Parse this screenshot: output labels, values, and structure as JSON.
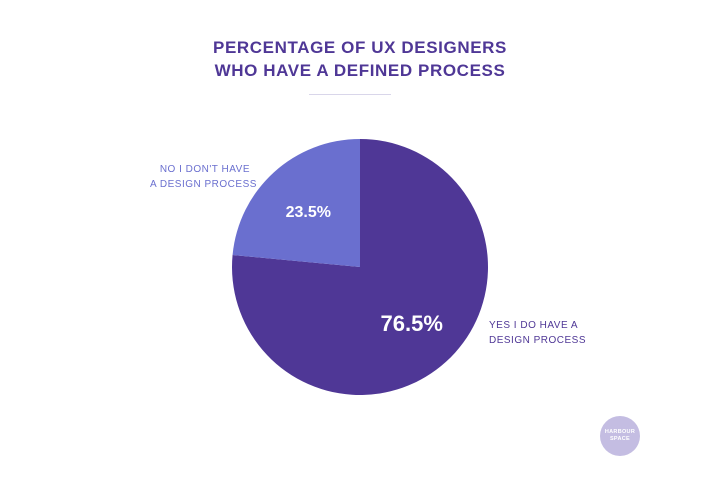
{
  "chart_data": {
    "type": "pie",
    "title_lines": [
      "PERCENTAGE OF UX DESIGNERS",
      "WHO HAVE A DEFINED PROCESS"
    ],
    "slices": [
      {
        "label_lines": [
          "YES I DO HAVE A",
          "DESIGN PROCESS"
        ],
        "value": 76.5,
        "value_label": "76.5%",
        "color": "#4f3796"
      },
      {
        "label_lines": [
          "NO I DON'T HAVE",
          "A DESIGN PROCESS"
        ],
        "value": 23.5,
        "value_label": "23.5%",
        "color": "#6a6fcf"
      }
    ]
  },
  "logo": {
    "lines": [
      "HARBOUR",
      "SPACE"
    ]
  }
}
